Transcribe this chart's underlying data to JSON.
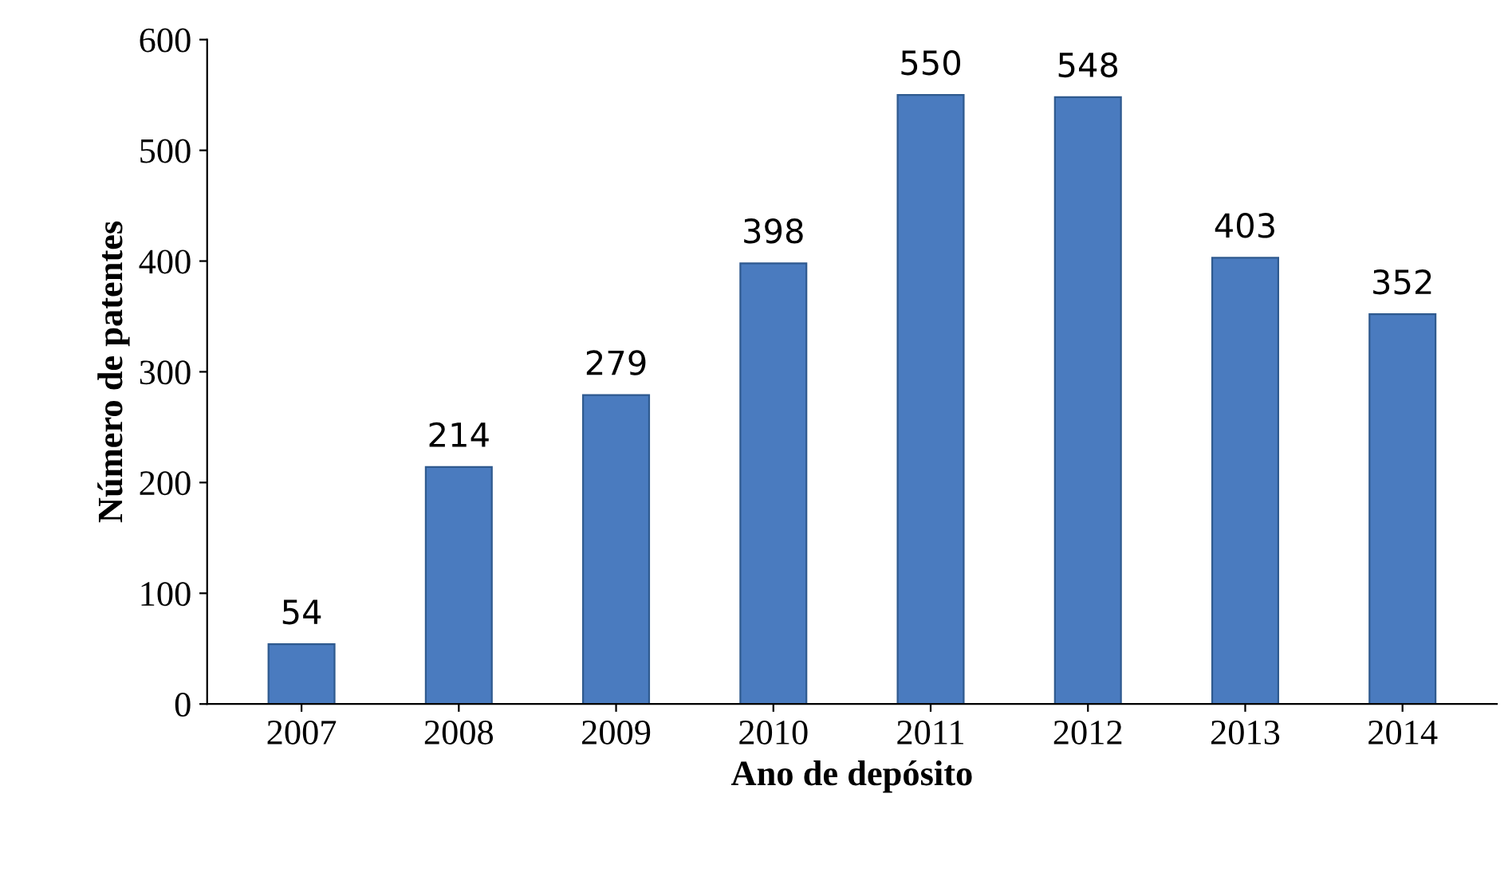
{
  "chart_data": {
    "type": "bar",
    "xlabel": "Ano de depósito",
    "ylabel": "Número de patentes",
    "categories": [
      "2007",
      "2008",
      "2009",
      "2010",
      "2011",
      "2012",
      "2013",
      "2014"
    ],
    "values": [
      54,
      214,
      279,
      398,
      550,
      548,
      403,
      352
    ],
    "color": "#4a7bbf",
    "ylim": [
      0,
      600
    ],
    "yticks": [
      0,
      100,
      200,
      300,
      400,
      500,
      600
    ],
    "grid": false,
    "data_labels": true,
    "legend": false
  }
}
